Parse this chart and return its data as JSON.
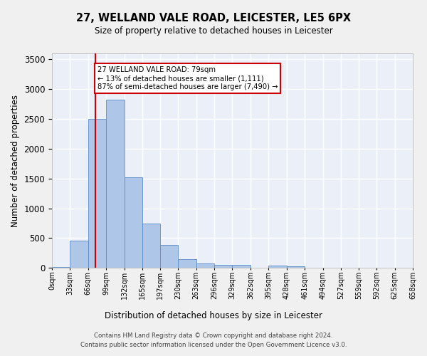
{
  "title": "27, WELLAND VALE ROAD, LEICESTER, LE5 6PX",
  "subtitle": "Size of property relative to detached houses in Leicester",
  "xlabel": "Distribution of detached houses by size in Leicester",
  "ylabel": "Number of detached properties",
  "bar_color": "#aec6e8",
  "bar_edge_color": "#5b8cc8",
  "background_color": "#eaeff8",
  "grid_color": "#ffffff",
  "bin_edges": [
    0,
    33,
    66,
    99,
    132,
    165,
    197,
    230,
    263,
    296,
    329,
    362,
    395,
    428,
    461,
    494,
    527,
    559,
    592,
    625,
    658
  ],
  "bin_labels": [
    "0sqm",
    "33sqm",
    "66sqm",
    "99sqm",
    "132sqm",
    "165sqm",
    "197sqm",
    "230sqm",
    "263sqm",
    "296sqm",
    "329sqm",
    "362sqm",
    "395sqm",
    "428sqm",
    "461sqm",
    "494sqm",
    "527sqm",
    "559sqm",
    "592sqm",
    "625sqm",
    "658sqm"
  ],
  "counts": [
    20,
    460,
    2500,
    2820,
    1520,
    745,
    390,
    145,
    75,
    55,
    55,
    0,
    45,
    25,
    0,
    0,
    0,
    0,
    0,
    0
  ],
  "vline_x": 79,
  "vline_color": "#cc0000",
  "annotation_text": "27 WELLAND VALE ROAD: 79sqm\n← 13% of detached houses are smaller (1,111)\n87% of semi-detached houses are larger (7,490) →",
  "annotation_box_color": "#ffffff",
  "annotation_box_edge_color": "#cc0000",
  "ylim": [
    0,
    3600
  ],
  "yticks": [
    0,
    500,
    1000,
    1500,
    2000,
    2500,
    3000,
    3500
  ],
  "footer_line1": "Contains HM Land Registry data © Crown copyright and database right 2024.",
  "footer_line2": "Contains public sector information licensed under the Open Government Licence v3.0."
}
